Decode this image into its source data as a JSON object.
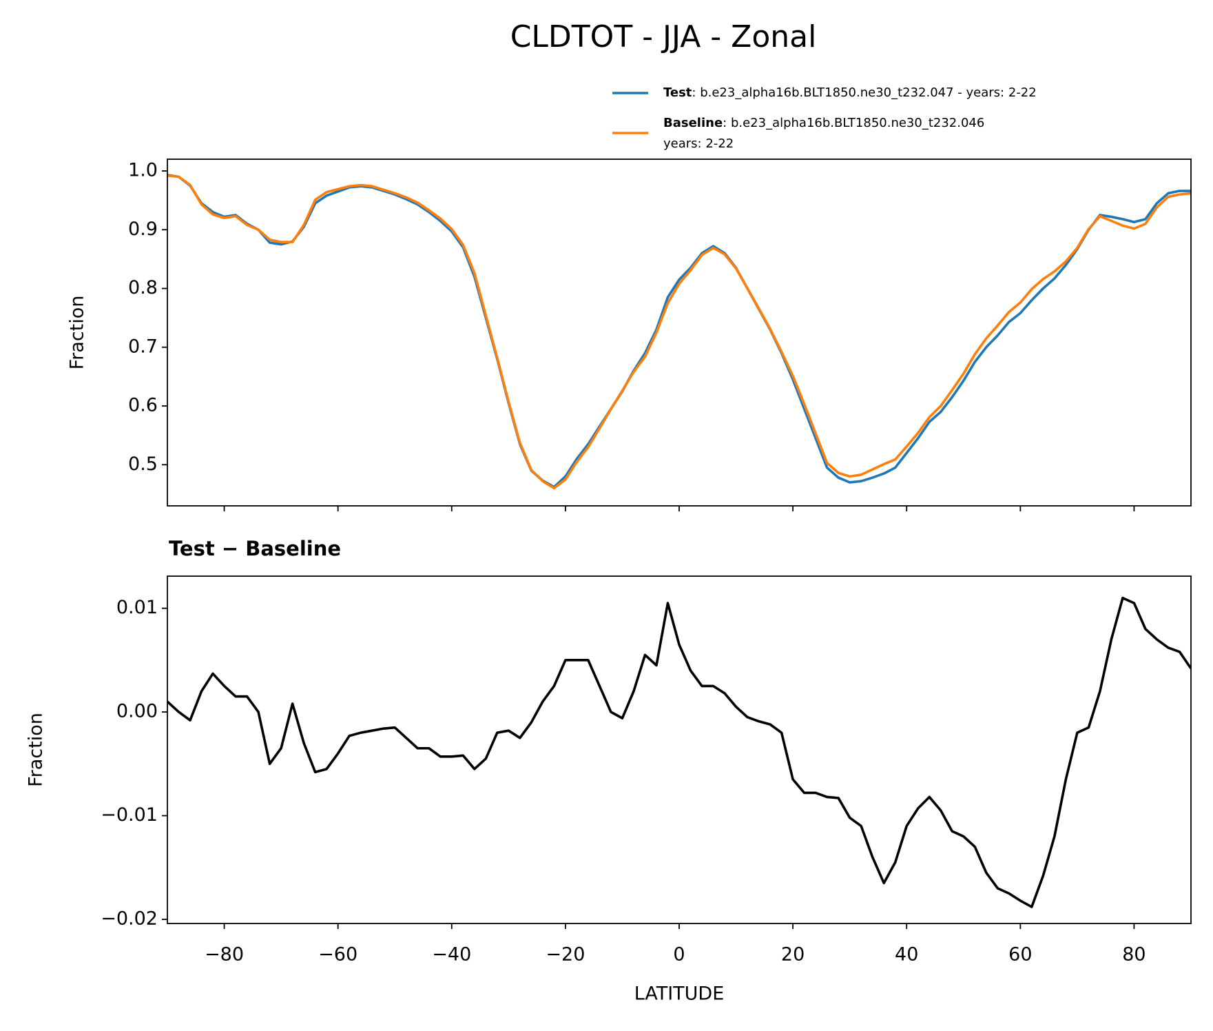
{
  "chart_data": [
    {
      "type": "line",
      "title": "CLDTOT - JJA - Zonal",
      "ylabel": "Fraction",
      "x": [
        -90,
        -88,
        -86,
        -84,
        -82,
        -80,
        -78,
        -76,
        -74,
        -72,
        -70,
        -68,
        -66,
        -64,
        -62,
        -60,
        -58,
        -56,
        -54,
        -52,
        -50,
        -48,
        -46,
        -44,
        -42,
        -40,
        -38,
        -36,
        -34,
        -32,
        -30,
        -28,
        -26,
        -24,
        -22,
        -20,
        -18,
        -16,
        -14,
        -12,
        -10,
        -8,
        -6,
        -4,
        -2,
        0,
        2,
        4,
        6,
        8,
        10,
        12,
        14,
        16,
        18,
        20,
        22,
        24,
        26,
        28,
        30,
        32,
        34,
        36,
        38,
        40,
        42,
        44,
        46,
        48,
        50,
        52,
        54,
        56,
        58,
        60,
        62,
        64,
        66,
        68,
        70,
        72,
        74,
        76,
        78,
        80,
        82,
        84,
        86,
        88,
        90
      ],
      "series": [
        {
          "name": "Test",
          "legend_text": [
            ": b.e23_alpha16b.BLT1850.ne30_t232.047 - years: 2-22"
          ],
          "color": "#1f77b4",
          "values": [
            0.993,
            0.99,
            0.975,
            0.945,
            0.93,
            0.922,
            0.925,
            0.91,
            0.9,
            0.878,
            0.875,
            0.88,
            0.905,
            0.945,
            0.958,
            0.965,
            0.972,
            0.974,
            0.972,
            0.966,
            0.96,
            0.952,
            0.943,
            0.93,
            0.915,
            0.897,
            0.87,
            0.82,
            0.75,
            0.68,
            0.605,
            0.535,
            0.49,
            0.473,
            0.462,
            0.48,
            0.51,
            0.535,
            0.565,
            0.595,
            0.625,
            0.66,
            0.69,
            0.73,
            0.785,
            0.815,
            0.835,
            0.86,
            0.872,
            0.86,
            0.835,
            0.8,
            0.765,
            0.73,
            0.69,
            0.645,
            0.595,
            0.545,
            0.495,
            0.478,
            0.47,
            0.472,
            0.478,
            0.485,
            0.495,
            0.52,
            0.545,
            0.573,
            0.59,
            0.615,
            0.643,
            0.675,
            0.7,
            0.72,
            0.743,
            0.758,
            0.78,
            0.8,
            0.817,
            0.84,
            0.867,
            0.9,
            0.925,
            0.922,
            0.918,
            0.913,
            0.918,
            0.945,
            0.962,
            0.966,
            0.966
          ]
        },
        {
          "name": "Baseline",
          "legend_text": [
            ": b.e23_alpha16b.BLT1850.ne30_t232.046",
            "years: 2-22"
          ],
          "color": "#ff7f0e",
          "values": [
            0.992,
            0.99,
            0.976,
            0.943,
            0.926,
            0.92,
            0.923,
            0.908,
            0.9,
            0.883,
            0.879,
            0.879,
            0.908,
            0.951,
            0.964,
            0.969,
            0.974,
            0.976,
            0.974,
            0.968,
            0.962,
            0.955,
            0.946,
            0.933,
            0.919,
            0.901,
            0.874,
            0.826,
            0.754,
            0.682,
            0.607,
            0.537,
            0.491,
            0.472,
            0.46,
            0.475,
            0.505,
            0.53,
            0.562,
            0.595,
            0.626,
            0.658,
            0.684,
            0.725,
            0.775,
            0.808,
            0.831,
            0.857,
            0.869,
            0.858,
            0.834,
            0.8,
            0.766,
            0.731,
            0.692,
            0.651,
            0.603,
            0.553,
            0.503,
            0.486,
            0.48,
            0.483,
            0.492,
            0.501,
            0.509,
            0.531,
            0.554,
            0.581,
            0.6,
            0.627,
            0.655,
            0.688,
            0.715,
            0.737,
            0.76,
            0.776,
            0.799,
            0.816,
            0.829,
            0.846,
            0.869,
            0.901,
            0.923,
            0.915,
            0.907,
            0.902,
            0.91,
            0.938,
            0.956,
            0.96,
            0.962
          ]
        }
      ],
      "xlim": [
        -90,
        90
      ],
      "xticks": [
        -80,
        -60,
        -40,
        -20,
        0,
        20,
        40,
        60,
        80
      ],
      "ylim": [
        0.43,
        1.02
      ],
      "yticks": [
        {
          "value": 0.5,
          "label": "0.5"
        },
        {
          "value": 0.6,
          "label": "0.6"
        },
        {
          "value": 0.7,
          "label": "0.7"
        },
        {
          "value": 0.8,
          "label": "0.8"
        },
        {
          "value": 0.9,
          "label": "0.9"
        },
        {
          "value": 1.0,
          "label": "1.0"
        }
      ]
    },
    {
      "type": "line",
      "title": "Test − Baseline",
      "xlabel": "LATITUDE",
      "ylabel": "Fraction",
      "color": "#000000",
      "x": [
        -90,
        -88,
        -86,
        -84,
        -82,
        -80,
        -78,
        -76,
        -74,
        -72,
        -70,
        -68,
        -66,
        -64,
        -62,
        -60,
        -58,
        -56,
        -54,
        -52,
        -50,
        -48,
        -46,
        -44,
        -42,
        -40,
        -38,
        -36,
        -34,
        -32,
        -30,
        -28,
        -26,
        -24,
        -22,
        -20,
        -18,
        -16,
        -14,
        -12,
        -10,
        -8,
        -6,
        -4,
        -2,
        0,
        2,
        4,
        6,
        8,
        10,
        12,
        14,
        16,
        18,
        20,
        22,
        24,
        26,
        28,
        30,
        32,
        34,
        36,
        38,
        40,
        42,
        44,
        46,
        48,
        50,
        52,
        54,
        56,
        58,
        60,
        62,
        64,
        66,
        68,
        70,
        72,
        74,
        76,
        78,
        80,
        82,
        84,
        86,
        88,
        90
      ],
      "values": [
        0.001,
        0.0,
        -0.0008,
        0.002,
        0.0037,
        0.0025,
        0.0015,
        0.0015,
        0.0,
        -0.005,
        -0.0035,
        0.0008,
        -0.003,
        -0.0058,
        -0.0055,
        -0.004,
        -0.0023,
        -0.002,
        -0.0018,
        -0.0016,
        -0.0015,
        -0.0025,
        -0.0035,
        -0.0035,
        -0.0043,
        -0.0043,
        -0.0042,
        -0.0055,
        -0.0045,
        -0.002,
        -0.0018,
        -0.0025,
        -0.001,
        0.001,
        0.0025,
        0.005,
        0.005,
        0.005,
        0.0025,
        0.0,
        -0.0006,
        0.002,
        0.0055,
        0.0045,
        0.0105,
        0.0065,
        0.004,
        0.0025,
        0.0025,
        0.0018,
        0.0005,
        -0.0005,
        -0.0009,
        -0.0012,
        -0.002,
        -0.0065,
        -0.0078,
        -0.0078,
        -0.0082,
        -0.0083,
        -0.0102,
        -0.011,
        -0.014,
        -0.0165,
        -0.0145,
        -0.011,
        -0.0093,
        -0.0082,
        -0.0095,
        -0.0115,
        -0.012,
        -0.013,
        -0.0155,
        -0.017,
        -0.0175,
        -0.0182,
        -0.0188,
        -0.0158,
        -0.012,
        -0.0065,
        -0.002,
        -0.0015,
        0.002,
        0.007,
        0.011,
        0.0105,
        0.008,
        0.007,
        0.0062,
        0.0058,
        0.0042
      ],
      "xlim": [
        -90,
        90
      ],
      "xticks": [
        {
          "value": -80,
          "label": "−80"
        },
        {
          "value": -60,
          "label": "−60"
        },
        {
          "value": -40,
          "label": "−40"
        },
        {
          "value": -20,
          "label": "−20"
        },
        0,
        20,
        40,
        60,
        80
      ],
      "ylim": [
        -0.0204,
        0.0131
      ],
      "yticks": [
        {
          "value": -0.02,
          "label": "−0.02"
        },
        {
          "value": -0.01,
          "label": "−0.01"
        },
        {
          "value": 0,
          "label": "0.00"
        },
        0.01
      ]
    }
  ]
}
